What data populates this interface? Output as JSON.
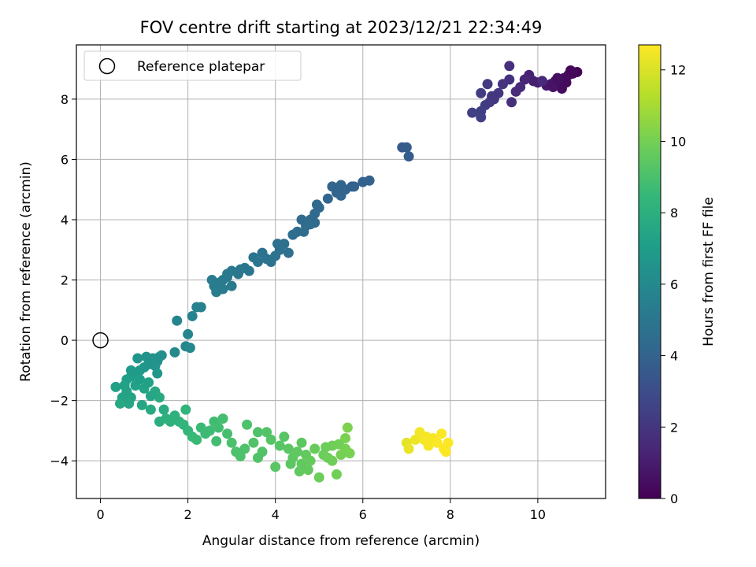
{
  "chart_data": {
    "type": "scatter",
    "title": "FOV centre drift starting at 2023/12/21 22:34:49",
    "xlabel": "Angular distance from reference (arcmin)",
    "ylabel": "Rotation from reference (arcmin)",
    "xlim": [
      -0.55,
      11.55
    ],
    "ylim": [
      -5.25,
      9.8
    ],
    "xticks": [
      0,
      2,
      4,
      6,
      8,
      10
    ],
    "yticks": [
      -4,
      -2,
      0,
      2,
      4,
      6,
      8
    ],
    "grid": true,
    "legend": {
      "placement": "top-left",
      "entries": [
        "Reference platepar"
      ]
    },
    "reference_point": {
      "x": 0,
      "y": 0,
      "label": "Reference platepar"
    },
    "colorbar": {
      "label": "Hours from first FF file",
      "colormap": "viridis",
      "range": [
        0,
        12.7
      ],
      "ticks": [
        0,
        2,
        4,
        6,
        8,
        10,
        12
      ]
    },
    "series": [
      {
        "points": [
          [
            10.9,
            8.9,
            0.1
          ],
          [
            10.8,
            8.85,
            0.2
          ],
          [
            10.7,
            8.8,
            0.3
          ],
          [
            10.6,
            8.7,
            0.4
          ],
          [
            10.5,
            8.55,
            0.5
          ],
          [
            10.4,
            8.6,
            0.6
          ],
          [
            10.3,
            8.5,
            0.7
          ],
          [
            10.2,
            8.45,
            0.8
          ],
          [
            10.1,
            8.6,
            0.9
          ],
          [
            10.0,
            8.55,
            1.0
          ],
          [
            9.9,
            8.6,
            1.1
          ],
          [
            9.8,
            8.8,
            1.2
          ],
          [
            9.7,
            8.65,
            1.3
          ],
          [
            10.55,
            8.35,
            0.45
          ],
          [
            10.35,
            8.4,
            0.65
          ],
          [
            10.65,
            8.55,
            0.35
          ],
          [
            10.75,
            8.95,
            0.25
          ],
          [
            10.45,
            8.7,
            0.55
          ],
          [
            9.5,
            8.25,
            1.6
          ],
          [
            9.35,
            8.65,
            1.8
          ],
          [
            9.2,
            8.5,
            1.9
          ],
          [
            9.1,
            8.2,
            2.0
          ],
          [
            9.0,
            8.0,
            2.1
          ],
          [
            8.9,
            7.9,
            2.2
          ],
          [
            8.8,
            7.8,
            2.25
          ],
          [
            8.7,
            7.6,
            2.4
          ],
          [
            8.5,
            7.55,
            2.5
          ],
          [
            8.7,
            7.4,
            2.45
          ],
          [
            8.85,
            8.5,
            2.15
          ],
          [
            9.4,
            7.9,
            1.7
          ],
          [
            9.35,
            9.1,
            1.75
          ],
          [
            10.1,
            8.6,
            1.5
          ],
          [
            8.7,
            8.2,
            2.3
          ],
          [
            8.95,
            8.1,
            2.05
          ],
          [
            9.6,
            8.4,
            1.55
          ],
          [
            6.9,
            6.4,
            3.6
          ],
          [
            7.0,
            6.4,
            3.7
          ],
          [
            7.05,
            6.1,
            3.75
          ],
          [
            6.15,
            5.3,
            3.9
          ],
          [
            6.0,
            5.25,
            3.95
          ],
          [
            5.8,
            5.1,
            4.0
          ],
          [
            5.6,
            5.0,
            4.05
          ],
          [
            5.4,
            4.9,
            4.1
          ],
          [
            5.2,
            4.7,
            4.2
          ],
          [
            5.5,
            4.8,
            4.15
          ],
          [
            5.3,
            5.1,
            4.1
          ],
          [
            5.0,
            4.4,
            4.3
          ],
          [
            4.9,
            4.2,
            4.35
          ],
          [
            4.8,
            4.0,
            4.4
          ],
          [
            4.7,
            3.8,
            4.45
          ],
          [
            4.5,
            3.6,
            4.5
          ],
          [
            4.4,
            3.5,
            4.55
          ],
          [
            4.2,
            3.2,
            4.6
          ],
          [
            4.1,
            3.0,
            4.7
          ],
          [
            4.0,
            2.8,
            4.75
          ],
          [
            3.9,
            2.6,
            4.8
          ],
          [
            3.8,
            2.7,
            4.85
          ],
          [
            3.7,
            2.9,
            4.8
          ],
          [
            3.6,
            2.6,
            4.9
          ],
          [
            3.5,
            2.75,
            4.95
          ],
          [
            3.3,
            2.4,
            5.0
          ],
          [
            3.15,
            2.2,
            5.05
          ],
          [
            3.0,
            2.3,
            5.1
          ],
          [
            2.9,
            2.1,
            5.15
          ],
          [
            2.8,
            2.0,
            5.2
          ],
          [
            2.7,
            1.9,
            5.25
          ],
          [
            2.6,
            1.8,
            5.3
          ],
          [
            2.55,
            2.0,
            5.25
          ],
          [
            2.65,
            1.6,
            5.35
          ],
          [
            2.8,
            1.7,
            5.3
          ],
          [
            3.0,
            1.8,
            5.2
          ],
          [
            2.9,
            2.2,
            5.15
          ],
          [
            4.6,
            4.0,
            4.4
          ],
          [
            4.9,
            3.9,
            4.4
          ],
          [
            4.95,
            4.5,
            4.3
          ],
          [
            4.3,
            2.9,
            4.65
          ],
          [
            4.65,
            3.6,
            4.5
          ],
          [
            5.5,
            5.15,
            4.1
          ],
          [
            4.05,
            3.2,
            4.65
          ],
          [
            3.4,
            2.3,
            5.0
          ],
          [
            4.8,
            3.85,
            4.45
          ],
          [
            5.75,
            5.1,
            4.0
          ],
          [
            3.2,
            2.35,
            5.05
          ],
          [
            2.3,
            1.1,
            5.6
          ],
          [
            2.2,
            1.1,
            5.65
          ],
          [
            2.1,
            0.8,
            5.7
          ],
          [
            2.0,
            0.2,
            5.8
          ],
          [
            1.95,
            -0.2,
            5.9
          ],
          [
            2.05,
            -0.25,
            5.95
          ],
          [
            1.75,
            0.65,
            5.75
          ],
          [
            1.7,
            -0.4,
            6.0
          ],
          [
            1.4,
            -0.5,
            6.3
          ],
          [
            1.3,
            -0.7,
            6.4
          ],
          [
            1.2,
            -0.6,
            6.5
          ],
          [
            1.1,
            -0.8,
            6.6
          ],
          [
            1.0,
            -0.9,
            6.7
          ],
          [
            0.9,
            -1.0,
            6.8
          ],
          [
            0.8,
            -1.1,
            6.9
          ],
          [
            0.7,
            -1.2,
            7.0
          ],
          [
            0.6,
            -1.3,
            7.1
          ],
          [
            0.55,
            -1.5,
            7.2
          ],
          [
            0.6,
            -1.7,
            7.3
          ],
          [
            0.7,
            -1.9,
            7.4
          ],
          [
            0.65,
            -2.1,
            7.5
          ],
          [
            0.8,
            -1.5,
            7.2
          ],
          [
            0.9,
            -1.3,
            7.1
          ],
          [
            1.0,
            -1.6,
            7.3
          ],
          [
            1.1,
            -1.4,
            7.2
          ],
          [
            0.5,
            -1.9,
            7.35
          ],
          [
            0.7,
            -1.0,
            6.9
          ],
          [
            1.05,
            -0.55,
            6.5
          ],
          [
            1.25,
            -0.85,
            6.55
          ],
          [
            1.3,
            -1.1,
            6.7
          ],
          [
            0.35,
            -1.55,
            7.25
          ],
          [
            0.45,
            -2.1,
            7.55
          ],
          [
            0.95,
            -2.15,
            7.5
          ],
          [
            1.15,
            -1.85,
            7.45
          ],
          [
            0.85,
            -0.6,
            6.6
          ],
          [
            1.35,
            -0.55,
            6.4
          ],
          [
            1.15,
            -2.3,
            7.7
          ],
          [
            1.25,
            -1.7,
            7.6
          ],
          [
            1.35,
            -1.9,
            7.7
          ],
          [
            1.45,
            -2.3,
            7.8
          ],
          [
            1.35,
            -2.7,
            7.9
          ],
          [
            1.5,
            -2.6,
            8.0
          ],
          [
            1.6,
            -2.7,
            8.1
          ],
          [
            1.7,
            -2.5,
            8.1
          ],
          [
            1.8,
            -2.7,
            8.2
          ],
          [
            1.9,
            -2.8,
            8.3
          ],
          [
            2.0,
            -3.0,
            8.4
          ],
          [
            2.1,
            -3.2,
            8.5
          ],
          [
            2.2,
            -3.3,
            8.6
          ],
          [
            1.95,
            -2.3,
            8.25
          ],
          [
            2.3,
            -2.9,
            8.6
          ],
          [
            2.5,
            -3.0,
            8.7
          ],
          [
            2.6,
            -2.7,
            8.75
          ],
          [
            2.7,
            -2.9,
            8.8
          ],
          [
            2.8,
            -2.6,
            8.85
          ],
          [
            2.9,
            -3.1,
            8.9
          ],
          [
            3.0,
            -3.4,
            9.0
          ],
          [
            3.1,
            -3.7,
            9.05
          ],
          [
            3.3,
            -3.6,
            9.1
          ],
          [
            3.5,
            -3.4,
            9.15
          ],
          [
            3.7,
            -3.7,
            9.2
          ],
          [
            3.9,
            -3.3,
            9.25
          ],
          [
            4.1,
            -3.5,
            9.3
          ],
          [
            4.0,
            -4.2,
            9.35
          ],
          [
            4.3,
            -3.6,
            9.4
          ],
          [
            4.4,
            -3.9,
            9.45
          ],
          [
            4.5,
            -3.7,
            9.5
          ],
          [
            4.6,
            -4.1,
            9.55
          ],
          [
            4.7,
            -3.8,
            9.6
          ],
          [
            4.8,
            -4.0,
            9.65
          ],
          [
            4.9,
            -3.6,
            9.7
          ],
          [
            5.0,
            -4.55,
            9.8
          ],
          [
            5.1,
            -3.8,
            9.8
          ],
          [
            5.2,
            -3.9,
            9.85
          ],
          [
            5.3,
            -3.5,
            9.9
          ],
          [
            5.4,
            -4.45,
            9.95
          ],
          [
            5.5,
            -3.8,
            10.0
          ],
          [
            5.6,
            -3.6,
            10.05
          ],
          [
            5.6,
            -3.25,
            10.1
          ],
          [
            5.65,
            -2.9,
            10.15
          ],
          [
            5.7,
            -3.75,
            10.1
          ],
          [
            3.35,
            -2.8,
            9.05
          ],
          [
            3.6,
            -3.05,
            9.1
          ],
          [
            3.8,
            -3.05,
            9.2
          ],
          [
            4.2,
            -3.2,
            9.3
          ],
          [
            4.6,
            -3.4,
            9.45
          ],
          [
            4.75,
            -4.3,
            9.6
          ],
          [
            5.15,
            -3.55,
            9.8
          ],
          [
            5.3,
            -4.0,
            9.9
          ],
          [
            5.45,
            -3.45,
            9.95
          ],
          [
            4.55,
            -4.35,
            9.55
          ],
          [
            2.4,
            -3.1,
            8.65
          ],
          [
            3.2,
            -3.85,
            9.05
          ],
          [
            3.6,
            -3.9,
            9.15
          ],
          [
            2.65,
            -3.35,
            8.8
          ],
          [
            4.35,
            -4.1,
            9.4
          ],
          [
            7.0,
            -3.4,
            12.2
          ],
          [
            7.05,
            -3.6,
            12.3
          ],
          [
            7.2,
            -3.3,
            12.4
          ],
          [
            7.3,
            -3.05,
            12.5
          ],
          [
            7.4,
            -3.3,
            12.55
          ],
          [
            7.5,
            -3.5,
            12.6
          ],
          [
            7.6,
            -3.25,
            12.6
          ],
          [
            7.7,
            -3.4,
            12.65
          ],
          [
            7.8,
            -3.1,
            12.65
          ],
          [
            7.9,
            -3.7,
            12.7
          ],
          [
            7.95,
            -3.4,
            12.7
          ],
          [
            7.85,
            -3.6,
            12.7
          ],
          [
            7.45,
            -3.2,
            12.55
          ]
        ]
      }
    ]
  }
}
